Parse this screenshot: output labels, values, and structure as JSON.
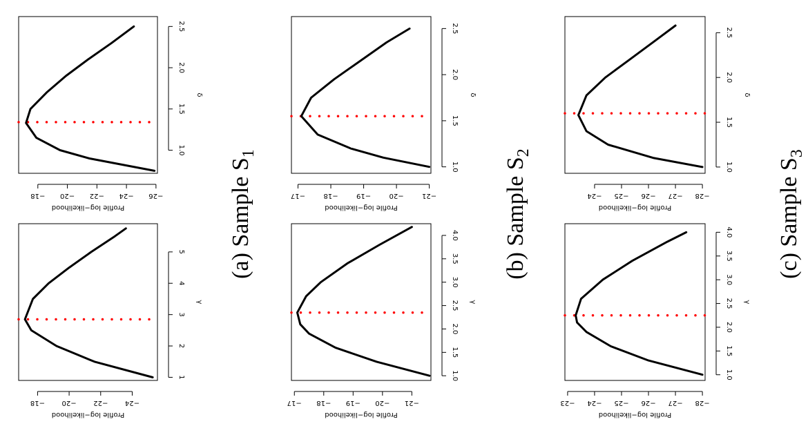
{
  "colors": {
    "curve": "#000000",
    "mle_line": "#ff0000",
    "frame": "#000000"
  },
  "chart_data": [
    {
      "id": "a-gamma",
      "type": "line",
      "group": "a",
      "xlabel": "γ",
      "ylabel": "Profile log−likelihood",
      "xlim": [
        0.9,
        5.9
      ],
      "ylim": [
        -25.6,
        -16.8
      ],
      "xticks": [
        1,
        2,
        3,
        4,
        5
      ],
      "xtick_labels": [
        "1",
        "2",
        "3",
        "4",
        "5"
      ],
      "yticks": [
        -18,
        -20,
        -22,
        -24
      ],
      "ytick_labels": [
        "−18",
        "−20",
        "−22",
        "−24"
      ],
      "x": [
        1.0,
        1.5,
        2.0,
        2.5,
        2.85,
        3.5,
        4.0,
        4.5,
        5.0,
        5.5,
        5.75
      ],
      "y": [
        -25.3,
        -21.6,
        -19.2,
        -17.6,
        -17.2,
        -17.7,
        -18.7,
        -20.0,
        -21.4,
        -22.9,
        -23.6
      ],
      "mle": 2.85
    },
    {
      "id": "a-delta",
      "type": "line",
      "group": "a",
      "xlabel": "δ",
      "ylabel": "Profile log−likelihood",
      "xlim": [
        0.72,
        2.62
      ],
      "ylim": [
        -26.1,
        -16.7
      ],
      "xticks": [
        1.0,
        1.5,
        2.0,
        2.5
      ],
      "xtick_labels": [
        "1.0",
        "1.5",
        "2.0",
        "2.5"
      ],
      "yticks": [
        -18,
        -20,
        -22,
        -24,
        -26
      ],
      "ytick_labels": [
        "−18",
        "−20",
        "−22",
        "−24",
        "−26"
      ],
      "x": [
        0.75,
        0.9,
        1.0,
        1.15,
        1.33,
        1.5,
        1.7,
        1.9,
        2.1,
        2.3,
        2.5
      ],
      "y": [
        -25.9,
        -21.5,
        -19.5,
        -17.9,
        -17.2,
        -17.5,
        -18.6,
        -19.9,
        -21.4,
        -23.0,
        -24.5
      ],
      "mle": 1.34
    },
    {
      "id": "b-gamma",
      "type": "line",
      "group": "b",
      "xlabel": "γ",
      "ylabel": "Profile log−likelihood",
      "xlim": [
        0.9,
        4.25
      ],
      "ylim": [
        -21.65,
        -16.9
      ],
      "xticks": [
        1.0,
        1.5,
        2.0,
        2.5,
        3.0,
        3.5,
        4.0
      ],
      "xtick_labels": [
        "1.0",
        "1.5",
        "2.0",
        "2.5",
        "3.0",
        "3.5",
        "4.0"
      ],
      "yticks": [
        -17,
        -18,
        -19,
        -20,
        -21
      ],
      "ytick_labels": [
        "−17",
        "−18",
        "−19",
        "−20",
        "−21"
      ],
      "x": [
        1.0,
        1.3,
        1.6,
        1.9,
        2.1,
        2.35,
        2.7,
        3.0,
        3.4,
        3.8,
        4.18
      ],
      "y": [
        -21.6,
        -19.8,
        -18.4,
        -17.5,
        -17.2,
        -17.1,
        -17.4,
        -17.9,
        -18.8,
        -19.9,
        -21.0
      ],
      "mle": 2.35
    },
    {
      "id": "b-delta",
      "type": "line",
      "group": "b",
      "xlabel": "δ",
      "ylabel": "Profile log−likelihood",
      "xlim": [
        0.93,
        2.63
      ],
      "ylim": [
        -21.05,
        -16.8
      ],
      "xticks": [
        1.0,
        1.5,
        2.0,
        2.5
      ],
      "xtick_labels": [
        "1.0",
        "1.5",
        "2.0",
        "2.5"
      ],
      "yticks": [
        -17,
        -18,
        -19,
        -20,
        -21
      ],
      "ytick_labels": [
        "−17",
        "−18",
        "−19",
        "−20",
        "−21"
      ],
      "x": [
        1.0,
        1.1,
        1.2,
        1.35,
        1.55,
        1.75,
        1.95,
        2.15,
        2.35,
        2.5
      ],
      "y": [
        -21.0,
        -19.6,
        -18.6,
        -17.6,
        -17.1,
        -17.4,
        -18.1,
        -18.9,
        -19.7,
        -20.4
      ],
      "mle": 1.55
    },
    {
      "id": "c-gamma",
      "type": "line",
      "group": "c",
      "xlabel": "γ",
      "ylabel": "Profile log−likelihood",
      "xlim": [
        0.88,
        4.18
      ],
      "ylim": [
        -28.1,
        -22.9
      ],
      "xticks": [
        1.0,
        1.5,
        2.0,
        2.5,
        3.0,
        3.5,
        4.0
      ],
      "xtick_labels": [
        "1.0",
        "1.5",
        "2.0",
        "2.5",
        "3.0",
        "3.5",
        "4.0"
      ],
      "yticks": [
        -23,
        -24,
        -25,
        -26,
        -27,
        -28
      ],
      "ytick_labels": [
        "−23",
        "−24",
        "−25",
        "−26",
        "−27",
        "−28"
      ],
      "x": [
        1.0,
        1.3,
        1.6,
        1.9,
        2.1,
        2.25,
        2.6,
        3.0,
        3.4,
        3.8,
        4.0
      ],
      "y": [
        -28.0,
        -26.0,
        -24.6,
        -23.7,
        -23.35,
        -23.3,
        -23.5,
        -24.3,
        -25.4,
        -26.7,
        -27.4
      ],
      "mle": 2.25
    },
    {
      "id": "c-delta",
      "type": "line",
      "group": "c",
      "xlabel": "δ",
      "ylabel": "Profile log−likelihood",
      "xlim": [
        0.93,
        2.68
      ],
      "ylim": [
        -28.1,
        -22.9
      ],
      "xticks": [
        1.0,
        1.5,
        2.0,
        2.5
      ],
      "xtick_labels": [
        "1.0",
        "1.5",
        "2.0",
        "2.5"
      ],
      "yticks": [
        -24,
        -25,
        -26,
        -27,
        -28
      ],
      "ytick_labels": [
        "−24",
        "−25",
        "−26",
        "−27",
        "−28"
      ],
      "x": [
        1.0,
        1.1,
        1.25,
        1.4,
        1.58,
        1.8,
        2.0,
        2.2,
        2.4,
        2.58
      ],
      "y": [
        -28.0,
        -26.2,
        -24.5,
        -23.7,
        -23.4,
        -23.7,
        -24.4,
        -25.3,
        -26.2,
        -27.0
      ],
      "mle": 1.6
    }
  ],
  "captions": {
    "a": {
      "prefix": "(a) Sample S",
      "sub": "1"
    },
    "b": {
      "prefix": "(b) Sample S",
      "sub": "2"
    },
    "c": {
      "prefix": "(c) Sample S",
      "sub": "3"
    }
  }
}
